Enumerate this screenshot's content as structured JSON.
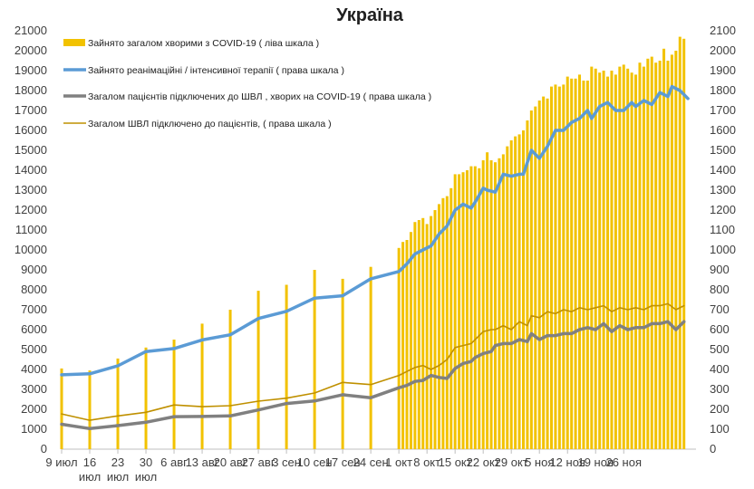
{
  "chart_data": {
    "title": "Україна",
    "type": "bar",
    "colors": {
      "bars": "#f2c200",
      "icu": "#5b9bd5",
      "vent_covid": "#808080",
      "vent_total": "#bf9000"
    },
    "x_tick_labels": [
      [
        "9 июл"
      ],
      [
        "16",
        "июл"
      ],
      [
        "23",
        "июл"
      ],
      [
        "30",
        "июл"
      ],
      [
        "6 авг"
      ],
      [
        "13 авг"
      ],
      [
        "20 авг"
      ],
      [
        "27 авг"
      ],
      [
        "3 сен"
      ],
      [
        "10 сен"
      ],
      [
        "17 сен"
      ],
      [
        "24 сен"
      ],
      [
        "1 окт"
      ],
      [
        "8 окт"
      ],
      [
        "15 окт"
      ],
      [
        "22 окт"
      ],
      [
        "29 окт"
      ],
      [
        "5 ноя"
      ],
      [
        "12 ноя"
      ],
      [
        "19 ноя"
      ],
      [
        "26 ноя"
      ]
    ],
    "left_axis": {
      "min": 0,
      "max": 21000,
      "step": 1000
    },
    "right_axis": {
      "min": 0,
      "max": 2100,
      "step": 100
    },
    "legend": [
      {
        "key": "bars",
        "label": "Зайнято загалом хворими з COVID-19 ( ліва шкала )"
      },
      {
        "key": "icu",
        "label": "Зайнято реанімаційні / інтенсивної терапії ( права шкала )"
      },
      {
        "key": "vent_covid",
        "label": "Загалом пацієнтів підключених до ШВЛ , хворих на COVID-19 ( права шкала )"
      },
      {
        "key": "vent_total",
        "label": "Загалом ШВЛ  підключено до пацієнтів, ( права шкала )"
      }
    ],
    "weekly_dates": [
      0,
      7,
      14,
      21,
      28,
      35,
      42,
      49,
      56,
      63,
      70,
      77
    ],
    "weekly_bars": [
      4050,
      3950,
      4550,
      5100,
      5500,
      6300,
      7000,
      7950,
      8250,
      9000,
      8550,
      9150
    ],
    "daily_start_day": 84,
    "daily_bars": [
      10100,
      10400,
      10500,
      10900,
      11400,
      11500,
      11600,
      11300,
      11700,
      12000,
      12300,
      12600,
      12700,
      13100,
      13800,
      13800,
      13900,
      14000,
      14200,
      14200,
      14100,
      14500,
      14900,
      14500,
      14400,
      14600,
      14800,
      15200,
      15500,
      15700,
      15800,
      16000,
      16500,
      17000,
      17200,
      17500,
      17700,
      17600,
      18200,
      18300,
      18200,
      18300,
      18700,
      18600,
      18600,
      18800,
      18500,
      18500,
      19200,
      19100,
      18900,
      19000,
      18700,
      19000,
      18800,
      19200,
      19300,
      19100,
      18900,
      18800,
      19400,
      19200,
      19600,
      19700,
      19400,
      19500,
      20100,
      19500,
      19800,
      20000,
      20700,
      20600
    ],
    "icu_points": [
      [
        0,
        373
      ],
      [
        7,
        378
      ],
      [
        14,
        418
      ],
      [
        21,
        490
      ],
      [
        28,
        505
      ],
      [
        35,
        548
      ],
      [
        42,
        574
      ],
      [
        49,
        656
      ],
      [
        56,
        692
      ],
      [
        63,
        758
      ],
      [
        70,
        770
      ],
      [
        77,
        855
      ],
      [
        84,
        892
      ],
      [
        86,
        930
      ],
      [
        88,
        980
      ],
      [
        90,
        1000
      ],
      [
        92,
        1020
      ],
      [
        94,
        1080
      ],
      [
        96,
        1120
      ],
      [
        98,
        1200
      ],
      [
        100,
        1230
      ],
      [
        102,
        1210
      ],
      [
        103,
        1240
      ],
      [
        105,
        1310
      ],
      [
        106,
        1300
      ],
      [
        108,
        1290
      ],
      [
        110,
        1380
      ],
      [
        112,
        1370
      ],
      [
        114,
        1380
      ],
      [
        115,
        1380
      ],
      [
        117,
        1500
      ],
      [
        119,
        1460
      ],
      [
        121,
        1520
      ],
      [
        123,
        1600
      ],
      [
        125,
        1600
      ],
      [
        127,
        1640
      ],
      [
        129,
        1660
      ],
      [
        131,
        1700
      ],
      [
        132,
        1660
      ],
      [
        134,
        1720
      ],
      [
        136,
        1740
      ],
      [
        137,
        1720
      ],
      [
        138,
        1700
      ],
      [
        140,
        1700
      ],
      [
        142,
        1740
      ],
      [
        143,
        1720
      ],
      [
        145,
        1750
      ],
      [
        147,
        1730
      ],
      [
        149,
        1790
      ],
      [
        151,
        1770
      ],
      [
        152,
        1820
      ],
      [
        154,
        1800
      ],
      [
        156,
        1760
      ]
    ],
    "vent_covid_points": [
      [
        0,
        125
      ],
      [
        7,
        103
      ],
      [
        14,
        118
      ],
      [
        21,
        135
      ],
      [
        28,
        163
      ],
      [
        35,
        164
      ],
      [
        42,
        167
      ],
      [
        49,
        197
      ],
      [
        56,
        229
      ],
      [
        63,
        242
      ],
      [
        70,
        273
      ],
      [
        77,
        258
      ],
      [
        84,
        308
      ],
      [
        86,
        320
      ],
      [
        88,
        340
      ],
      [
        90,
        345
      ],
      [
        92,
        370
      ],
      [
        94,
        360
      ],
      [
        96,
        355
      ],
      [
        98,
        405
      ],
      [
        100,
        430
      ],
      [
        102,
        440
      ],
      [
        103,
        460
      ],
      [
        105,
        480
      ],
      [
        107,
        490
      ],
      [
        108,
        520
      ],
      [
        110,
        530
      ],
      [
        112,
        530
      ],
      [
        114,
        550
      ],
      [
        116,
        540
      ],
      [
        117,
        580
      ],
      [
        119,
        550
      ],
      [
        121,
        570
      ],
      [
        123,
        570
      ],
      [
        125,
        580
      ],
      [
        127,
        580
      ],
      [
        129,
        600
      ],
      [
        131,
        610
      ],
      [
        133,
        600
      ],
      [
        135,
        630
      ],
      [
        137,
        590
      ],
      [
        139,
        620
      ],
      [
        141,
        600
      ],
      [
        143,
        610
      ],
      [
        145,
        610
      ],
      [
        147,
        630
      ],
      [
        149,
        630
      ],
      [
        151,
        640
      ],
      [
        153,
        600
      ],
      [
        155,
        640
      ]
    ],
    "vent_total_points": [
      [
        0,
        177
      ],
      [
        7,
        145
      ],
      [
        14,
        167
      ],
      [
        21,
        185
      ],
      [
        28,
        222
      ],
      [
        35,
        213
      ],
      [
        42,
        218
      ],
      [
        49,
        241
      ],
      [
        56,
        256
      ],
      [
        63,
        282
      ],
      [
        70,
        335
      ],
      [
        77,
        324
      ],
      [
        84,
        370
      ],
      [
        86,
        390
      ],
      [
        88,
        410
      ],
      [
        90,
        420
      ],
      [
        92,
        400
      ],
      [
        94,
        420
      ],
      [
        96,
        450
      ],
      [
        98,
        510
      ],
      [
        100,
        520
      ],
      [
        102,
        530
      ],
      [
        103,
        550
      ],
      [
        105,
        590
      ],
      [
        107,
        600
      ],
      [
        108,
        600
      ],
      [
        110,
        620
      ],
      [
        112,
        600
      ],
      [
        114,
        640
      ],
      [
        116,
        620
      ],
      [
        117,
        670
      ],
      [
        119,
        660
      ],
      [
        121,
        690
      ],
      [
        123,
        680
      ],
      [
        125,
        700
      ],
      [
        127,
        690
      ],
      [
        129,
        710
      ],
      [
        131,
        700
      ],
      [
        133,
        710
      ],
      [
        135,
        720
      ],
      [
        137,
        690
      ],
      [
        139,
        710
      ],
      [
        141,
        700
      ],
      [
        143,
        710
      ],
      [
        145,
        700
      ],
      [
        147,
        720
      ],
      [
        149,
        720
      ],
      [
        151,
        730
      ],
      [
        153,
        700
      ],
      [
        155,
        720
      ]
    ]
  }
}
